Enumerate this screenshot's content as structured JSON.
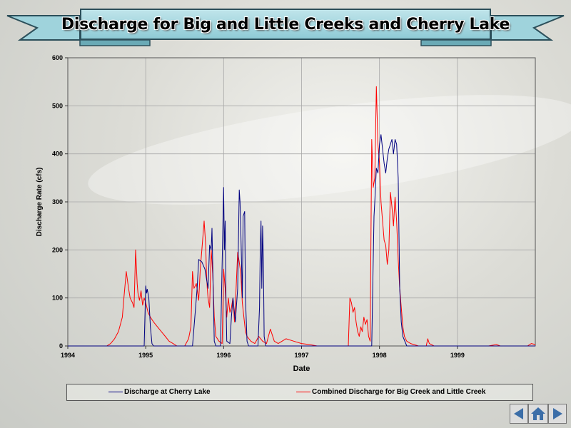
{
  "header": {
    "title": "Discharge for Big and Little  Creeks and Cherry Lake"
  },
  "nav": {
    "back_icon": "left-arrow-icon",
    "home_icon": "home-icon",
    "forward_icon": "right-arrow-icon"
  },
  "chart_data": {
    "type": "line",
    "title": "Discharge for Big and Little  Creeks and Cherry Lake",
    "xlabel": "Date",
    "ylabel": "Discharge Rate (cfs)",
    "xlim": [
      1994,
      2000
    ],
    "ylim": [
      0,
      600
    ],
    "x_ticks": [
      "1994",
      "1995",
      "1996",
      "1997",
      "1998",
      "1999"
    ],
    "y_ticks": [
      "0",
      "100",
      "200",
      "300",
      "400",
      "500",
      "600"
    ],
    "grid": true,
    "legend_position": "bottom",
    "series": [
      {
        "name": "Discharge at Cherry Lake",
        "color": "#000080",
        "x": [
          1994.0,
          1994.98,
          1995.0,
          1995.01,
          1995.02,
          1995.04,
          1995.06,
          1995.08,
          1995.1,
          1995.6,
          1995.66,
          1995.68,
          1995.72,
          1995.76,
          1995.8,
          1995.82,
          1995.84,
          1995.85,
          1995.88,
          1995.9,
          1995.96,
          1996.0,
          1996.01,
          1996.02,
          1996.03,
          1996.04,
          1996.08,
          1996.1,
          1996.12,
          1996.15,
          1996.18,
          1996.2,
          1996.21,
          1996.22,
          1996.24,
          1996.25,
          1996.27,
          1996.28,
          1996.3,
          1996.32,
          1996.44,
          1996.46,
          1996.47,
          1996.48,
          1996.49,
          1996.5,
          1996.51,
          1996.52,
          1996.54,
          1997.9,
          1997.93,
          1997.94,
          1997.96,
          1997.98,
          1998.0,
          1998.02,
          1998.04,
          1998.06,
          1998.08,
          1998.1,
          1998.12,
          1998.14,
          1998.16,
          1998.18,
          1998.2,
          1998.22,
          1998.24,
          1998.26,
          1998.28,
          1998.3,
          1998.35,
          2000.0
        ],
        "values": [
          0,
          0,
          125,
          110,
          118,
          100,
          40,
          5,
          0,
          0,
          120,
          180,
          175,
          160,
          120,
          210,
          200,
          245,
          10,
          0,
          0,
          330,
          200,
          260,
          100,
          10,
          5,
          60,
          100,
          50,
          120,
          325,
          300,
          240,
          100,
          270,
          280,
          100,
          10,
          0,
          0,
          80,
          200,
          260,
          120,
          250,
          180,
          20,
          0,
          0,
          270,
          300,
          370,
          360,
          420,
          440,
          410,
          380,
          360,
          390,
          410,
          420,
          430,
          400,
          430,
          420,
          350,
          120,
          50,
          20,
          0,
          0
        ]
      },
      {
        "name": "Combined Discharge for Big Creek and Little Creek",
        "color": "#ff0000",
        "x": [
          1994.0,
          1994.5,
          1994.55,
          1994.6,
          1994.65,
          1994.7,
          1994.72,
          1994.75,
          1994.78,
          1994.8,
          1994.83,
          1994.85,
          1994.87,
          1994.89,
          1994.9,
          1994.92,
          1994.94,
          1994.96,
          1994.98,
          1995.0,
          1995.03,
          1995.06,
          1995.1,
          1995.15,
          1995.2,
          1995.25,
          1995.3,
          1995.35,
          1995.4,
          1995.5,
          1995.55,
          1995.58,
          1995.6,
          1995.62,
          1995.65,
          1995.68,
          1995.7,
          1995.72,
          1995.75,
          1995.77,
          1995.78,
          1995.79,
          1995.8,
          1995.82,
          1995.84,
          1995.86,
          1995.88,
          1995.9,
          1995.94,
          1995.98,
          1996.0,
          1996.02,
          1996.04,
          1996.06,
          1996.08,
          1996.1,
          1996.12,
          1996.14,
          1996.16,
          1996.18,
          1996.2,
          1996.22,
          1996.24,
          1996.26,
          1996.28,
          1996.3,
          1996.35,
          1996.4,
          1996.45,
          1996.5,
          1996.55,
          1996.6,
          1996.65,
          1996.7,
          1996.8,
          1996.9,
          1997.0,
          1997.1,
          1997.2,
          1997.6,
          1997.62,
          1997.64,
          1997.66,
          1997.68,
          1997.7,
          1997.72,
          1997.74,
          1997.76,
          1997.78,
          1997.8,
          1997.82,
          1997.84,
          1997.86,
          1997.88,
          1997.9,
          1997.92,
          1997.94,
          1997.96,
          1997.98,
          1998.0,
          1998.02,
          1998.04,
          1998.06,
          1998.08,
          1998.1,
          1998.12,
          1998.14,
          1998.16,
          1998.18,
          1998.2,
          1998.22,
          1998.24,
          1998.26,
          1998.28,
          1998.3,
          1998.32,
          1998.35,
          1998.4,
          1998.5,
          1998.6,
          1998.62,
          1998.64,
          1998.7,
          1999.0,
          1999.4,
          1999.5,
          1999.55,
          1999.6,
          1999.9,
          1999.95,
          2000.0
        ],
        "values": [
          0,
          0,
          5,
          15,
          30,
          60,
          100,
          155,
          120,
          100,
          90,
          80,
          200,
          130,
          110,
          95,
          115,
          85,
          100,
          90,
          70,
          60,
          50,
          40,
          30,
          20,
          10,
          5,
          0,
          0,
          15,
          40,
          155,
          120,
          130,
          95,
          160,
          200,
          260,
          210,
          150,
          120,
          100,
          80,
          200,
          150,
          60,
          20,
          10,
          5,
          160,
          120,
          60,
          100,
          70,
          80,
          100,
          50,
          120,
          195,
          175,
          150,
          90,
          60,
          30,
          20,
          10,
          5,
          20,
          10,
          5,
          35,
          10,
          5,
          15,
          10,
          5,
          3,
          0,
          0,
          100,
          90,
          70,
          80,
          50,
          30,
          20,
          40,
          30,
          60,
          45,
          55,
          20,
          10,
          430,
          330,
          350,
          540,
          420,
          380,
          300,
          260,
          220,
          210,
          170,
          200,
          320,
          290,
          250,
          310,
          260,
          180,
          120,
          80,
          40,
          20,
          10,
          5,
          0,
          0,
          15,
          5,
          0,
          0,
          0,
          3,
          0,
          0,
          0,
          5,
          3
        ]
      }
    ]
  }
}
